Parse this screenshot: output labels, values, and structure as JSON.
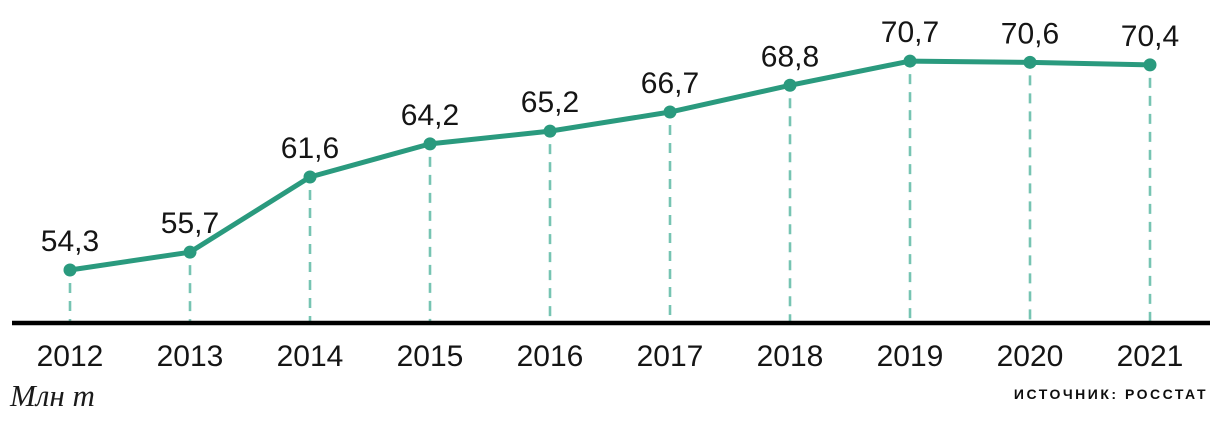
{
  "chart_data": {
    "type": "line",
    "categories": [
      "2012",
      "2013",
      "2014",
      "2015",
      "2016",
      "2017",
      "2018",
      "2019",
      "2020",
      "2021"
    ],
    "values": [
      54.3,
      55.7,
      61.6,
      64.2,
      65.2,
      66.7,
      68.8,
      70.7,
      70.6,
      70.4
    ],
    "value_labels": [
      "54,3",
      "55,7",
      "61,6",
      "64,2",
      "65,2",
      "66,7",
      "68,8",
      "70,7",
      "70,6",
      "70,4"
    ],
    "title": "",
    "xlabel": "",
    "ylabel": "Млн т",
    "ylim": [
      50,
      75
    ],
    "grid": false,
    "legend_position": "none",
    "source": "ИСТОЧНИК: РОССТАТ",
    "colors": {
      "line": "#2a9a7e",
      "marker": "#2a9a7e",
      "dash": "#76c4b2",
      "axis": "#000000",
      "text": "#151515"
    }
  }
}
